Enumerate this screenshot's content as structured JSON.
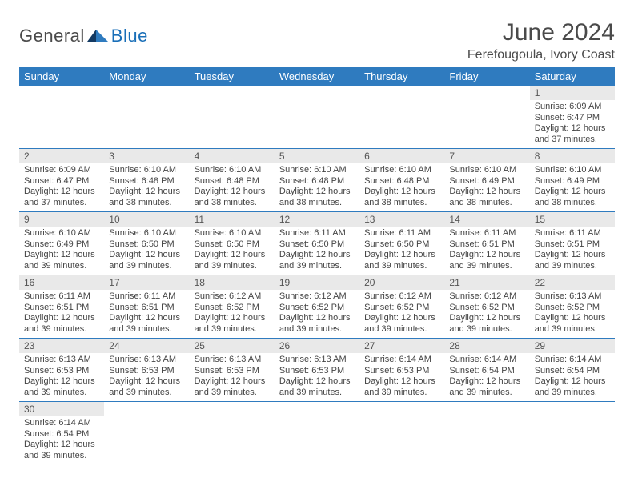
{
  "brand": {
    "word1": "General",
    "word2": "Blue"
  },
  "title": "June 2024",
  "location": "Ferefougoula, Ivory Coast",
  "colors": {
    "header_bg": "#2f7bbf",
    "header_fg": "#ffffff",
    "daynum_bg": "#e9e9e9",
    "row_border": "#2f7bbf",
    "brand_blue": "#1a6fb8",
    "text": "#3a3a3a"
  },
  "weekdays": [
    "Sunday",
    "Monday",
    "Tuesday",
    "Wednesday",
    "Thursday",
    "Friday",
    "Saturday"
  ],
  "weeks": [
    [
      null,
      null,
      null,
      null,
      null,
      null,
      {
        "n": "1",
        "sr": "6:09 AM",
        "ss": "6:47 PM",
        "dl": "12 hours and 37 minutes."
      }
    ],
    [
      {
        "n": "2",
        "sr": "6:09 AM",
        "ss": "6:47 PM",
        "dl": "12 hours and 37 minutes."
      },
      {
        "n": "3",
        "sr": "6:10 AM",
        "ss": "6:48 PM",
        "dl": "12 hours and 38 minutes."
      },
      {
        "n": "4",
        "sr": "6:10 AM",
        "ss": "6:48 PM",
        "dl": "12 hours and 38 minutes."
      },
      {
        "n": "5",
        "sr": "6:10 AM",
        "ss": "6:48 PM",
        "dl": "12 hours and 38 minutes."
      },
      {
        "n": "6",
        "sr": "6:10 AM",
        "ss": "6:48 PM",
        "dl": "12 hours and 38 minutes."
      },
      {
        "n": "7",
        "sr": "6:10 AM",
        "ss": "6:49 PM",
        "dl": "12 hours and 38 minutes."
      },
      {
        "n": "8",
        "sr": "6:10 AM",
        "ss": "6:49 PM",
        "dl": "12 hours and 38 minutes."
      }
    ],
    [
      {
        "n": "9",
        "sr": "6:10 AM",
        "ss": "6:49 PM",
        "dl": "12 hours and 39 minutes."
      },
      {
        "n": "10",
        "sr": "6:10 AM",
        "ss": "6:50 PM",
        "dl": "12 hours and 39 minutes."
      },
      {
        "n": "11",
        "sr": "6:10 AM",
        "ss": "6:50 PM",
        "dl": "12 hours and 39 minutes."
      },
      {
        "n": "12",
        "sr": "6:11 AM",
        "ss": "6:50 PM",
        "dl": "12 hours and 39 minutes."
      },
      {
        "n": "13",
        "sr": "6:11 AM",
        "ss": "6:50 PM",
        "dl": "12 hours and 39 minutes."
      },
      {
        "n": "14",
        "sr": "6:11 AM",
        "ss": "6:51 PM",
        "dl": "12 hours and 39 minutes."
      },
      {
        "n": "15",
        "sr": "6:11 AM",
        "ss": "6:51 PM",
        "dl": "12 hours and 39 minutes."
      }
    ],
    [
      {
        "n": "16",
        "sr": "6:11 AM",
        "ss": "6:51 PM",
        "dl": "12 hours and 39 minutes."
      },
      {
        "n": "17",
        "sr": "6:11 AM",
        "ss": "6:51 PM",
        "dl": "12 hours and 39 minutes."
      },
      {
        "n": "18",
        "sr": "6:12 AM",
        "ss": "6:52 PM",
        "dl": "12 hours and 39 minutes."
      },
      {
        "n": "19",
        "sr": "6:12 AM",
        "ss": "6:52 PM",
        "dl": "12 hours and 39 minutes."
      },
      {
        "n": "20",
        "sr": "6:12 AM",
        "ss": "6:52 PM",
        "dl": "12 hours and 39 minutes."
      },
      {
        "n": "21",
        "sr": "6:12 AM",
        "ss": "6:52 PM",
        "dl": "12 hours and 39 minutes."
      },
      {
        "n": "22",
        "sr": "6:13 AM",
        "ss": "6:52 PM",
        "dl": "12 hours and 39 minutes."
      }
    ],
    [
      {
        "n": "23",
        "sr": "6:13 AM",
        "ss": "6:53 PM",
        "dl": "12 hours and 39 minutes."
      },
      {
        "n": "24",
        "sr": "6:13 AM",
        "ss": "6:53 PM",
        "dl": "12 hours and 39 minutes."
      },
      {
        "n": "25",
        "sr": "6:13 AM",
        "ss": "6:53 PM",
        "dl": "12 hours and 39 minutes."
      },
      {
        "n": "26",
        "sr": "6:13 AM",
        "ss": "6:53 PM",
        "dl": "12 hours and 39 minutes."
      },
      {
        "n": "27",
        "sr": "6:14 AM",
        "ss": "6:53 PM",
        "dl": "12 hours and 39 minutes."
      },
      {
        "n": "28",
        "sr": "6:14 AM",
        "ss": "6:54 PM",
        "dl": "12 hours and 39 minutes."
      },
      {
        "n": "29",
        "sr": "6:14 AM",
        "ss": "6:54 PM",
        "dl": "12 hours and 39 minutes."
      }
    ],
    [
      {
        "n": "30",
        "sr": "6:14 AM",
        "ss": "6:54 PM",
        "dl": "12 hours and 39 minutes."
      },
      null,
      null,
      null,
      null,
      null,
      null
    ]
  ],
  "labels": {
    "sunrise": "Sunrise:",
    "sunset": "Sunset:",
    "daylight": "Daylight:"
  }
}
